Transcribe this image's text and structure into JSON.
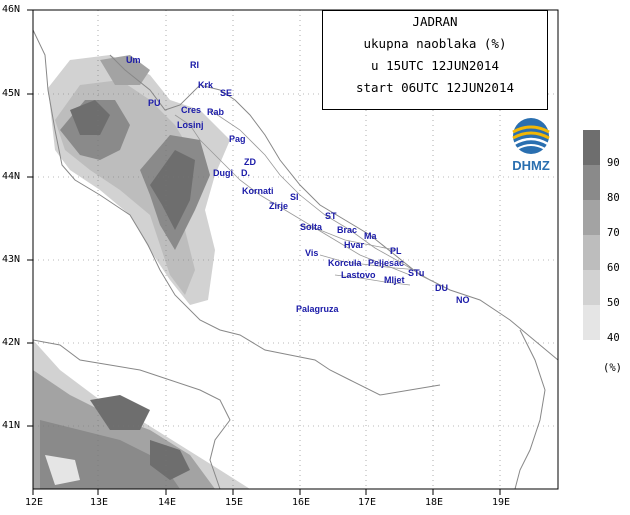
{
  "title": {
    "line1": "JADRAN",
    "line2": "ukupna naoblaka (%)",
    "line3": "u 15UTC 12JUN2014",
    "line4": "start 06UTC 12JUN2014"
  },
  "logo": {
    "text": "DHMZ"
  },
  "axes": {
    "lon_labels": [
      "12E",
      "13E",
      "14E",
      "15E",
      "16E",
      "17E",
      "18E",
      "19E"
    ],
    "lat_labels": [
      "46N",
      "45N",
      "44N",
      "43N",
      "42N",
      "41N"
    ]
  },
  "legend": {
    "unit": "(%)",
    "levels": [
      "90",
      "80",
      "70",
      "60",
      "50",
      "40"
    ],
    "colors": [
      "#6e6e6e",
      "#8a8a8a",
      "#a3a3a3",
      "#bdbdbd",
      "#d2d2d2",
      "#e5e5e5"
    ]
  },
  "places": [
    {
      "id": "um",
      "label": "Um"
    },
    {
      "id": "ri",
      "label": "RI"
    },
    {
      "id": "krk",
      "label": "Krk"
    },
    {
      "id": "se",
      "label": "SE"
    },
    {
      "id": "pu",
      "label": "PU"
    },
    {
      "id": "cres",
      "label": "Cres"
    },
    {
      "id": "rab",
      "label": "Rab"
    },
    {
      "id": "losinj",
      "label": "Losinj"
    },
    {
      "id": "pag",
      "label": "Pag"
    },
    {
      "id": "zd",
      "label": "ZD"
    },
    {
      "id": "dugi",
      "label": "Dugi"
    },
    {
      "id": "d",
      "label": "D."
    },
    {
      "id": "kornati",
      "label": "Kornati"
    },
    {
      "id": "si",
      "label": "SI"
    },
    {
      "id": "zirje",
      "label": "Zirje"
    },
    {
      "id": "st",
      "label": "ST"
    },
    {
      "id": "solta",
      "label": "Solta"
    },
    {
      "id": "brac",
      "label": "Brac"
    },
    {
      "id": "ma",
      "label": "Ma"
    },
    {
      "id": "hvar",
      "label": "Hvar"
    },
    {
      "id": "vis",
      "label": "Vis"
    },
    {
      "id": "pl",
      "label": "PL"
    },
    {
      "id": "korcula",
      "label": "Korcula"
    },
    {
      "id": "peljesac",
      "label": "Peljesac"
    },
    {
      "id": "lastovo",
      "label": "Lastovo"
    },
    {
      "id": "stu",
      "label": "STu"
    },
    {
      "id": "mljet",
      "label": "Mljet"
    },
    {
      "id": "du",
      "label": "DU"
    },
    {
      "id": "no",
      "label": "NO"
    },
    {
      "id": "palagruza",
      "label": "Palagruza"
    }
  ]
}
